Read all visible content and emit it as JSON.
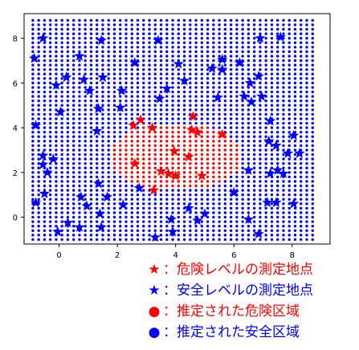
{
  "chart_data": {
    "type": "scatter",
    "xlim": [
      -1.2,
      9.3
    ],
    "ylim": [
      -1.2,
      9.1
    ],
    "x_ticks": [
      0,
      2,
      4,
      6,
      8
    ],
    "y_ticks": [
      0,
      2,
      4,
      6,
      8
    ],
    "grid": false,
    "legend_position": "below",
    "grid_points": {
      "x_start": -0.9,
      "x_end": 8.7,
      "x_step": 0.2,
      "y_start": -1.0,
      "y_end": 8.8,
      "y_step": 0.2,
      "danger_region": {
        "center": [
          4.0,
          2.7
        ],
        "radii": [
          2.3,
          1.5
        ]
      }
    },
    "series": [
      {
        "name": "：危険レベルの測定地点",
        "marker": "star",
        "color": "#ff0000",
        "points": [
          [
            2.55,
            4.1
          ],
          [
            2.8,
            4.35
          ],
          [
            3.2,
            4.0
          ],
          [
            4.6,
            4.5
          ],
          [
            4.55,
            3.9
          ],
          [
            4.75,
            3.8
          ],
          [
            5.6,
            3.7
          ],
          [
            3.95,
            2.95
          ],
          [
            4.45,
            2.7
          ],
          [
            2.6,
            2.4
          ],
          [
            3.5,
            2.05
          ],
          [
            3.75,
            1.95
          ],
          [
            4.0,
            1.85
          ],
          [
            4.9,
            1.85
          ],
          [
            3.25,
            1.2
          ]
        ]
      },
      {
        "name": "：安全レベルの測定地点",
        "marker": "star",
        "color": "#0000ff",
        "points": [
          [
            -0.55,
            8.0
          ],
          [
            1.45,
            7.9
          ],
          [
            3.4,
            7.9
          ],
          [
            6.9,
            8.0
          ],
          [
            7.6,
            8.05
          ],
          [
            -0.85,
            7.1
          ],
          [
            0.7,
            7.2
          ],
          [
            2.6,
            6.9
          ],
          [
            4.1,
            6.85
          ],
          [
            5.6,
            7.05
          ],
          [
            6.2,
            6.9
          ],
          [
            0.25,
            6.25
          ],
          [
            0.85,
            6.15
          ],
          [
            1.5,
            6.25
          ],
          [
            4.3,
            6.1
          ],
          [
            5.25,
            6.65
          ],
          [
            5.6,
            6.6
          ],
          [
            6.85,
            6.3
          ],
          [
            6.55,
            6.0
          ],
          [
            -0.1,
            5.9
          ],
          [
            1.05,
            5.65
          ],
          [
            2.15,
            5.65
          ],
          [
            3.7,
            5.75
          ],
          [
            6.35,
            5.4
          ],
          [
            6.6,
            5.15
          ],
          [
            6.95,
            5.4
          ],
          [
            3.45,
            5.3
          ],
          [
            5.45,
            5.35
          ],
          [
            1.35,
            4.85
          ],
          [
            2.1,
            4.9
          ],
          [
            0.05,
            4.7
          ],
          [
            -0.8,
            4.1
          ],
          [
            1.3,
            3.85
          ],
          [
            7.25,
            4.3
          ],
          [
            7.2,
            3.4
          ],
          [
            8.05,
            3.65
          ],
          [
            7.45,
            3.2
          ],
          [
            8.25,
            2.85
          ],
          [
            7.85,
            2.85
          ],
          [
            -0.55,
            2.75
          ],
          [
            -0.2,
            2.6
          ],
          [
            -0.55,
            2.35
          ],
          [
            -0.4,
            2.0
          ],
          [
            6.5,
            2.1
          ],
          [
            7.25,
            1.95
          ],
          [
            7.5,
            2.1
          ],
          [
            7.7,
            1.95
          ],
          [
            1.35,
            1.5
          ],
          [
            2.75,
            1.3
          ],
          [
            6.0,
            1.1
          ],
          [
            -0.5,
            1.05
          ],
          [
            0.75,
            0.9
          ],
          [
            1.65,
            0.9
          ],
          [
            -0.8,
            0.65
          ],
          [
            0.95,
            0.5
          ],
          [
            2.2,
            0.55
          ],
          [
            7.15,
            0.65
          ],
          [
            7.45,
            0.65
          ],
          [
            8.05,
            0.6
          ],
          [
            4.45,
            0.4
          ],
          [
            5.0,
            0.15
          ],
          [
            1.4,
            0.15
          ],
          [
            3.85,
            -0.1
          ],
          [
            4.75,
            -0.15
          ],
          [
            6.5,
            -0.1
          ],
          [
            0.3,
            -0.25
          ],
          [
            0.7,
            -0.45
          ],
          [
            1.45,
            -0.45
          ],
          [
            -0.05,
            -0.65
          ],
          [
            3.9,
            -0.65
          ],
          [
            6.85,
            -0.75
          ],
          [
            3.3,
            -0.9
          ]
        ]
      }
    ],
    "legend": [
      {
        "symbol": "★",
        "color": "#ff0000",
        "label": "：危険レベルの測定地点"
      },
      {
        "symbol": "★",
        "color": "#0000ff",
        "label": "：安全レベルの測定地点"
      },
      {
        "symbol": "●",
        "color": "#ff0000",
        "label": "：推定された危険区域"
      },
      {
        "symbol": "●",
        "color": "#0000ff",
        "label": "：推定された安全区域"
      }
    ]
  }
}
